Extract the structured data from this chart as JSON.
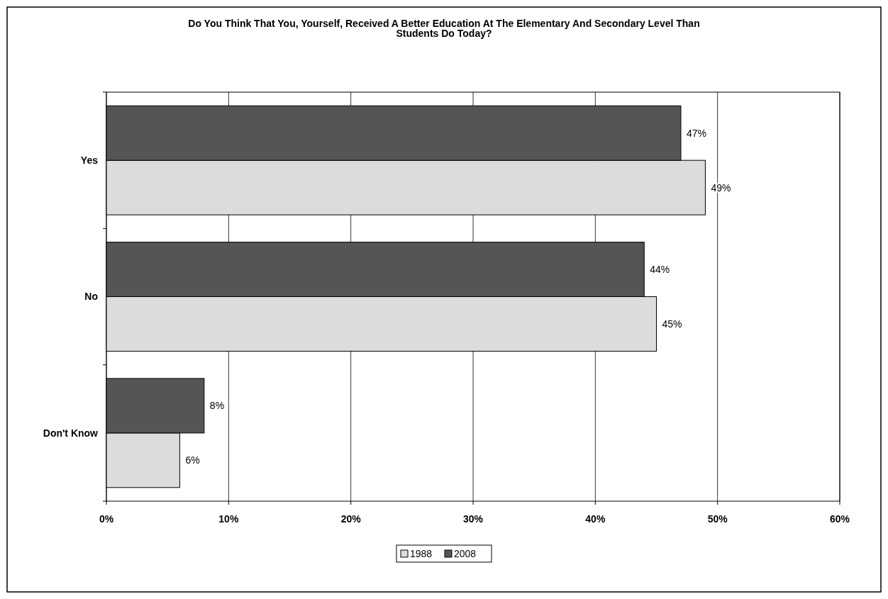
{
  "chart_data": {
    "type": "bar",
    "orientation": "horizontal",
    "title": "Do You Think That You, Yourself, Received A Better Education At The Elementary And Secondary Level Than Students Do Today?",
    "categories": [
      "Yes",
      "No",
      "Don't Know"
    ],
    "series": [
      {
        "name": "1988",
        "color": "#dcdcdc",
        "values": [
          49,
          45,
          6
        ],
        "value_labels": [
          "49%",
          "45%",
          "6%"
        ]
      },
      {
        "name": "2008",
        "color": "#555555",
        "values": [
          47,
          44,
          8
        ],
        "value_labels": [
          "47%",
          "44%",
          "8%"
        ]
      }
    ],
    "xlim": [
      0,
      60
    ],
    "xticks": [
      {
        "value": 0,
        "label": "0%"
      },
      {
        "value": 10,
        "label": "10%"
      },
      {
        "value": 20,
        "label": "20%"
      },
      {
        "value": 30,
        "label": "30%"
      },
      {
        "value": 40,
        "label": "40%"
      },
      {
        "value": 50,
        "label": "50%"
      },
      {
        "value": 60,
        "label": "60%"
      }
    ],
    "grid": "x",
    "legend": "bottom"
  }
}
